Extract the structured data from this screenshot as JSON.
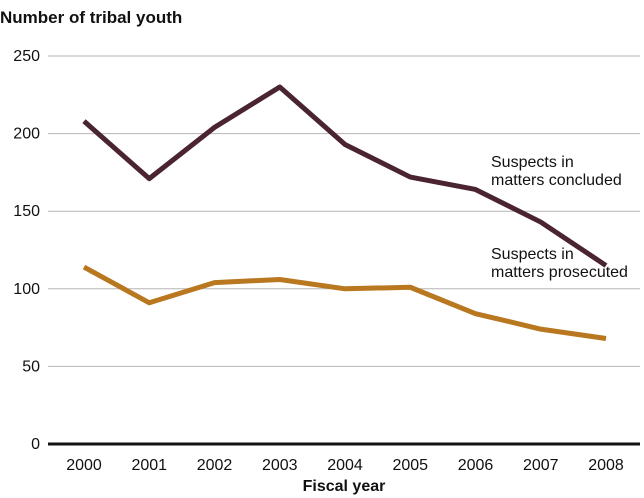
{
  "chart_data": {
    "type": "line",
    "ylabel": "Number of tribal youth",
    "xlabel": "Fiscal year",
    "x": [
      "2000",
      "2001",
      "2002",
      "2003",
      "2004",
      "2005",
      "2006",
      "2007",
      "2008"
    ],
    "ylim": [
      0,
      250
    ],
    "yticks": [
      0,
      50,
      100,
      150,
      200,
      250
    ],
    "grid": true,
    "series": [
      {
        "name_lines": [
          "Suspects in",
          "matters concluded"
        ],
        "color": "#4a2432",
        "values": [
          208,
          171,
          204,
          230,
          193,
          172,
          164,
          143,
          115
        ]
      },
      {
        "name_lines": [
          "Suspects in",
          "matters prosecuted"
        ],
        "color": "#b9771f",
        "values": [
          114,
          91,
          104,
          106,
          100,
          101,
          84,
          74,
          68
        ]
      }
    ]
  }
}
